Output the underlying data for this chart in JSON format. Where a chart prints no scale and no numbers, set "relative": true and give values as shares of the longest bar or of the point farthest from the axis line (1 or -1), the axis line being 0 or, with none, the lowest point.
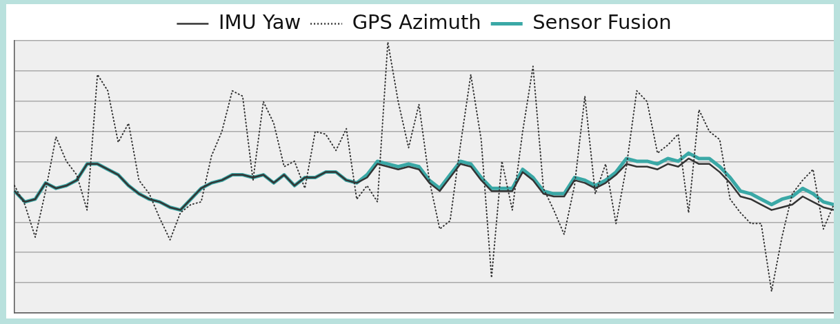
{
  "chart_data": {
    "type": "line",
    "relative": true,
    "categories": [
      null,
      null,
      null,
      null,
      null,
      null,
      null,
      null,
      null,
      null,
      null,
      null,
      null,
      null,
      null,
      null,
      null,
      null,
      null,
      null,
      null,
      null,
      null,
      null,
      null,
      null,
      null,
      null,
      null,
      null,
      null,
      null,
      null,
      null,
      null,
      null,
      null,
      null,
      null,
      null,
      null,
      null,
      null,
      null,
      null,
      null,
      null,
      null,
      null,
      null,
      null,
      null,
      null,
      null,
      null,
      null,
      null,
      null,
      null,
      null,
      null,
      null,
      null,
      null,
      null,
      null,
      null,
      null,
      null,
      null,
      null,
      null,
      null,
      null,
      null,
      null,
      null,
      null,
      null,
      null
    ],
    "series": [
      {
        "name": "IMU Yaw",
        "color": "#333333",
        "line_style": "solid",
        "values": [
          0.45,
          0.41,
          0.42,
          0.48,
          0.46,
          0.47,
          0.49,
          0.55,
          0.55,
          0.53,
          0.51,
          0.47,
          0.44,
          0.42,
          0.41,
          0.39,
          0.38,
          0.42,
          0.46,
          0.48,
          0.49,
          0.51,
          0.51,
          0.5,
          0.51,
          0.48,
          0.51,
          0.47,
          0.5,
          0.5,
          0.52,
          0.52,
          0.49,
          0.48,
          0.5,
          0.55,
          0.54,
          0.53,
          0.54,
          0.53,
          0.48,
          0.45,
          0.5,
          0.55,
          0.54,
          0.49,
          0.45,
          0.45,
          0.45,
          0.52,
          0.49,
          0.44,
          0.43,
          0.43,
          0.49,
          0.48,
          0.46,
          0.48,
          0.51,
          0.55,
          0.54,
          0.54,
          0.53,
          0.55,
          0.54,
          0.57,
          0.55,
          0.55,
          0.52,
          0.48,
          0.43,
          0.42,
          0.4,
          0.38,
          0.39,
          0.4,
          0.43,
          0.41,
          0.39,
          0.38
        ]
      },
      {
        "name": "GPS Azimuth",
        "color": "#333333",
        "line_style": "dotted",
        "values": [
          0.47,
          0.4,
          0.28,
          0.45,
          0.65,
          0.56,
          0.51,
          0.38,
          0.88,
          0.82,
          0.63,
          0.7,
          0.49,
          0.44,
          0.35,
          0.27,
          0.37,
          0.4,
          0.41,
          0.58,
          0.67,
          0.82,
          0.8,
          0.49,
          0.78,
          0.7,
          0.54,
          0.56,
          0.46,
          0.67,
          0.66,
          0.6,
          0.68,
          0.42,
          0.47,
          0.41,
          1.0,
          0.78,
          0.61,
          0.77,
          0.49,
          0.31,
          0.34,
          0.62,
          0.88,
          0.64,
          0.13,
          0.56,
          0.38,
          0.67,
          0.91,
          0.46,
          0.38,
          0.29,
          0.47,
          0.8,
          0.44,
          0.55,
          0.33,
          0.54,
          0.82,
          0.78,
          0.59,
          0.62,
          0.66,
          0.37,
          0.75,
          0.67,
          0.64,
          0.42,
          0.37,
          0.33,
          0.33,
          0.08,
          0.28,
          0.44,
          0.49,
          0.53,
          0.31,
          0.4
        ]
      },
      {
        "name": "Sensor Fusion",
        "color": "#3aa8a6",
        "line_style": "solid",
        "values": [
          0.45,
          0.41,
          0.42,
          0.48,
          0.46,
          0.47,
          0.49,
          0.55,
          0.55,
          0.53,
          0.51,
          0.47,
          0.44,
          0.42,
          0.41,
          0.39,
          0.38,
          0.42,
          0.46,
          0.48,
          0.49,
          0.51,
          0.51,
          0.5,
          0.51,
          0.48,
          0.51,
          0.47,
          0.5,
          0.5,
          0.52,
          0.52,
          0.49,
          0.48,
          0.51,
          0.56,
          0.55,
          0.54,
          0.55,
          0.54,
          0.49,
          0.46,
          0.51,
          0.56,
          0.55,
          0.5,
          0.46,
          0.46,
          0.46,
          0.53,
          0.5,
          0.45,
          0.44,
          0.44,
          0.5,
          0.49,
          0.47,
          0.49,
          0.52,
          0.57,
          0.56,
          0.56,
          0.55,
          0.57,
          0.56,
          0.59,
          0.57,
          0.57,
          0.54,
          0.5,
          0.45,
          0.44,
          0.42,
          0.4,
          0.42,
          0.43,
          0.46,
          0.44,
          0.41,
          0.4
        ]
      }
    ],
    "legend": "top",
    "grid": "y",
    "marker": "none"
  }
}
